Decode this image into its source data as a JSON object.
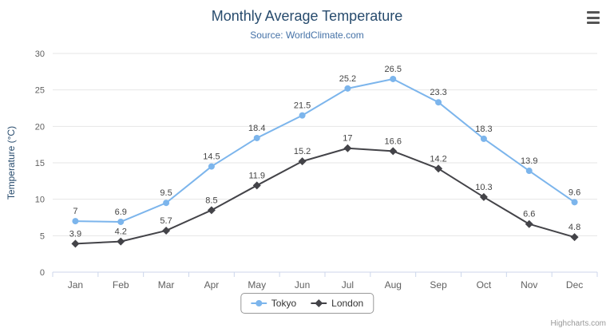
{
  "chart_data": {
    "type": "line",
    "title": "Monthly Average Temperature",
    "subtitle": "Source: WorldClimate.com",
    "xlabel": "",
    "ylabel": "Temperature (°C)",
    "ylim": [
      0,
      30
    ],
    "yticks": [
      0,
      5,
      10,
      15,
      20,
      25,
      30
    ],
    "grid": true,
    "legend_position": "bottom",
    "categories": [
      "Jan",
      "Feb",
      "Mar",
      "Apr",
      "May",
      "Jun",
      "Jul",
      "Aug",
      "Sep",
      "Oct",
      "Nov",
      "Dec"
    ],
    "series": [
      {
        "name": "Tokyo",
        "color": "#7cb5ec",
        "marker": "circle",
        "values": [
          7,
          6.9,
          9.5,
          14.5,
          18.4,
          21.5,
          25.2,
          26.5,
          23.3,
          18.3,
          13.9,
          9.6
        ]
      },
      {
        "name": "London",
        "color": "#434348",
        "marker": "diamond",
        "values": [
          3.9,
          4.2,
          5.7,
          8.5,
          11.9,
          15.2,
          17,
          16.6,
          14.2,
          10.3,
          6.6,
          4.8
        ]
      }
    ]
  },
  "credits": "Highcharts.com",
  "icons": {
    "export_menu": "hamburger-menu-icon"
  },
  "colors": {
    "title": "#274b6d",
    "subtitle": "#4572a7",
    "axis_label": "#606060",
    "gridline": "#e6e6e6",
    "axis_line": "#ccd6eb",
    "data_label": "#444444"
  }
}
